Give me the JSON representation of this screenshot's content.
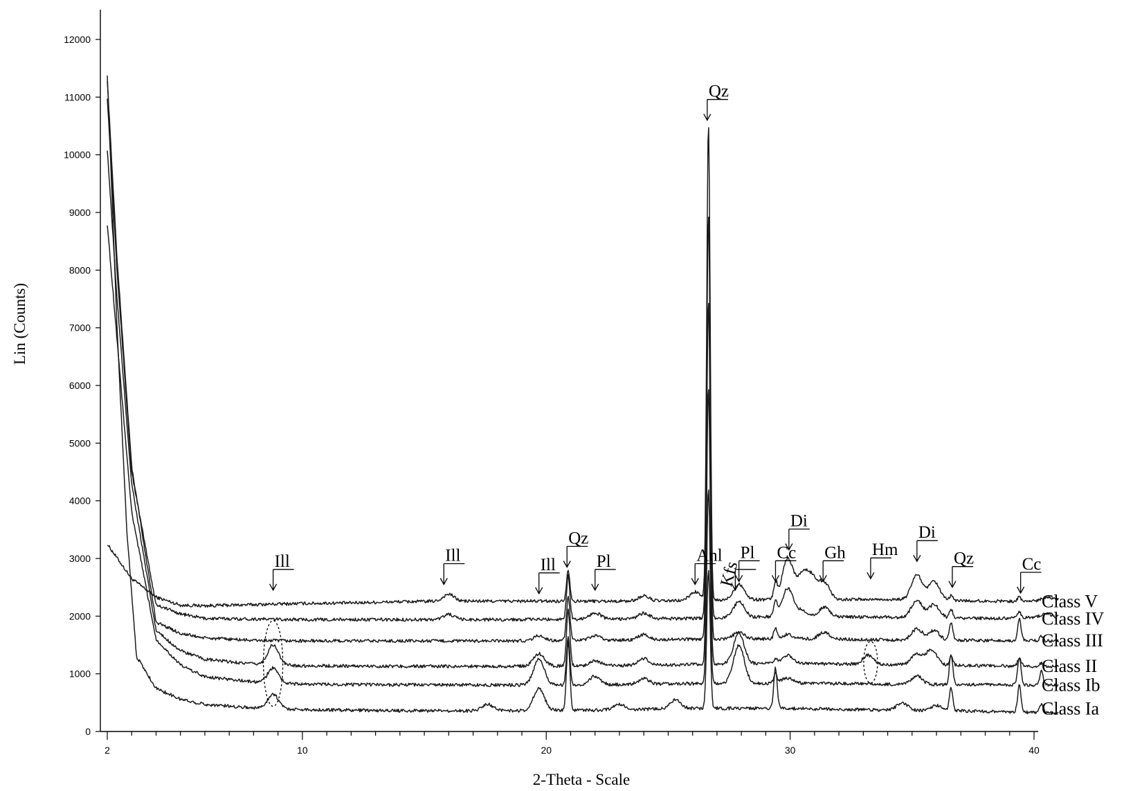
{
  "chart_data": {
    "type": "line",
    "title": "",
    "xlabel": "2-Theta - Scale",
    "ylabel": "Lin (Counts)",
    "xlim": [
      2,
      41
    ],
    "ylim": [
      0,
      12000
    ],
    "grid": false,
    "x_ticks": [
      2,
      10,
      20,
      30,
      40
    ],
    "x_minor_ticks": [
      3,
      4,
      5,
      6,
      7,
      8,
      9,
      11,
      12,
      13,
      14,
      15,
      16,
      17,
      18,
      19,
      21,
      22,
      23,
      24,
      25,
      26,
      27,
      28,
      29,
      31,
      32,
      33,
      34,
      35,
      36,
      37,
      38,
      39,
      41
    ],
    "y_ticks": [
      0,
      1000,
      2000,
      3000,
      4000,
      5000,
      6000,
      7000,
      8000,
      9000,
      10000,
      11000,
      12000
    ],
    "series": [
      {
        "name": "Class V",
        "baseline": 2250,
        "low_angle_intensity": 3250,
        "points": [
          [
            2,
            3250
          ],
          [
            3,
            2650
          ],
          [
            4,
            2330
          ],
          [
            5,
            2190
          ],
          [
            6,
            2180
          ],
          [
            8,
            2200
          ],
          [
            10,
            2220
          ],
          [
            12,
            2230
          ],
          [
            14,
            2250
          ],
          [
            16,
            2260
          ],
          [
            18,
            2260
          ],
          [
            20,
            2260
          ],
          [
            22,
            2260
          ],
          [
            24,
            2260
          ],
          [
            26,
            2270
          ],
          [
            28,
            2280
          ],
          [
            30,
            2300
          ],
          [
            32,
            2290
          ],
          [
            34,
            2290
          ],
          [
            36,
            2280
          ],
          [
            38,
            2260
          ],
          [
            40,
            2260
          ],
          [
            41,
            2300
          ]
        ],
        "peaks": [
          [
            16.0,
            2380
          ],
          [
            20.9,
            2800
          ],
          [
            24.0,
            2350
          ],
          [
            26.1,
            2420
          ],
          [
            26.65,
            10550
          ],
          [
            27.9,
            2560
          ],
          [
            29.4,
            2560
          ],
          [
            29.9,
            3000
          ],
          [
            30.5,
            2700
          ],
          [
            30.9,
            2640
          ],
          [
            31.4,
            2580
          ],
          [
            35.2,
            2720
          ],
          [
            35.9,
            2600
          ],
          [
            36.6,
            2350
          ],
          [
            39.4,
            2330
          ],
          [
            40.5,
            2330
          ]
        ]
      },
      {
        "name": "Class IV",
        "baseline": 1950,
        "low_angle_intensity": 11000,
        "points": [
          [
            2,
            11000
          ],
          [
            2.4,
            8000
          ],
          [
            3,
            4500
          ],
          [
            4,
            2200
          ],
          [
            5,
            2040
          ],
          [
            6,
            1960
          ],
          [
            8,
            1950
          ],
          [
            10,
            1940
          ],
          [
            14,
            1940
          ],
          [
            18,
            1940
          ],
          [
            22,
            1950
          ],
          [
            26,
            1960
          ],
          [
            30,
            2000
          ],
          [
            34,
            1980
          ],
          [
            38,
            1960
          ],
          [
            41,
            1980
          ]
        ],
        "peaks": [
          [
            16.0,
            2030
          ],
          [
            20.9,
            2700
          ],
          [
            22.0,
            2060
          ],
          [
            24.0,
            2050
          ],
          [
            26.65,
            9000
          ],
          [
            27.9,
            2250
          ],
          [
            29.4,
            2250
          ],
          [
            29.9,
            2480
          ],
          [
            30.5,
            2100
          ],
          [
            31.4,
            2150
          ],
          [
            35.2,
            2280
          ],
          [
            35.9,
            2200
          ],
          [
            36.6,
            2120
          ],
          [
            39.4,
            2080
          ],
          [
            40.5,
            2040
          ]
        ]
      },
      {
        "name": "Class III",
        "baseline": 1570,
        "low_angle_intensity": 11300,
        "points": [
          [
            2,
            11300
          ],
          [
            2.4,
            8200
          ],
          [
            3,
            4600
          ],
          [
            4,
            1900
          ],
          [
            5,
            1700
          ],
          [
            6,
            1620
          ],
          [
            8,
            1580
          ],
          [
            10,
            1570
          ],
          [
            14,
            1570
          ],
          [
            18,
            1570
          ],
          [
            22,
            1580
          ],
          [
            26,
            1600
          ],
          [
            30,
            1610
          ],
          [
            34,
            1590
          ],
          [
            38,
            1580
          ],
          [
            41,
            1570
          ]
        ],
        "peaks": [
          [
            19.7,
            1660
          ],
          [
            20.9,
            2350
          ],
          [
            22.0,
            1660
          ],
          [
            24.0,
            1680
          ],
          [
            26.65,
            7500
          ],
          [
            27.9,
            1720
          ],
          [
            29.4,
            1780
          ],
          [
            29.9,
            1680
          ],
          [
            31.4,
            1720
          ],
          [
            35.2,
            1780
          ],
          [
            35.9,
            1750
          ],
          [
            36.6,
            1900
          ],
          [
            39.4,
            1950
          ],
          [
            40.3,
            1660
          ]
        ]
      },
      {
        "name": "Class II",
        "baseline": 1130,
        "low_angle_intensity": 10100,
        "points": [
          [
            2,
            10100
          ],
          [
            2.4,
            7500
          ],
          [
            3,
            4300
          ],
          [
            4,
            1750
          ],
          [
            5,
            1400
          ],
          [
            6,
            1250
          ],
          [
            8,
            1170
          ],
          [
            10,
            1140
          ],
          [
            14,
            1130
          ],
          [
            18,
            1130
          ],
          [
            22,
            1140
          ],
          [
            26,
            1160
          ],
          [
            30,
            1180
          ],
          [
            34,
            1160
          ],
          [
            38,
            1140
          ],
          [
            41,
            1130
          ]
        ],
        "peaks": [
          [
            8.8,
            1500
          ],
          [
            19.7,
            1350
          ],
          [
            20.9,
            2100
          ],
          [
            22.0,
            1230
          ],
          [
            24.0,
            1260
          ],
          [
            26.65,
            6000
          ],
          [
            27.9,
            1700
          ],
          [
            29.4,
            1250
          ],
          [
            29.9,
            1320
          ],
          [
            33.2,
            1320
          ],
          [
            35.2,
            1350
          ],
          [
            35.8,
            1420
          ],
          [
            36.6,
            1300
          ],
          [
            39.4,
            1280
          ],
          [
            40.3,
            1180
          ]
        ]
      },
      {
        "name": "Class Ib",
        "baseline": 800,
        "low_angle_intensity": 8800,
        "points": [
          [
            2,
            8800
          ],
          [
            2.4,
            6800
          ],
          [
            3,
            3800
          ],
          [
            4,
            1600
          ],
          [
            5,
            1150
          ],
          [
            6,
            950
          ],
          [
            8,
            860
          ],
          [
            10,
            820
          ],
          [
            14,
            810
          ],
          [
            18,
            805
          ],
          [
            22,
            810
          ],
          [
            26,
            830
          ],
          [
            30,
            840
          ],
          [
            34,
            820
          ],
          [
            38,
            810
          ],
          [
            41,
            800
          ]
        ],
        "peaks": [
          [
            8.8,
            1100
          ],
          [
            19.7,
            1250
          ],
          [
            20.9,
            1650
          ],
          [
            22.0,
            960
          ],
          [
            24.0,
            920
          ],
          [
            26.65,
            4200
          ],
          [
            27.9,
            1500
          ],
          [
            29.4,
            1000
          ],
          [
            29.9,
            930
          ],
          [
            35.2,
            960
          ],
          [
            36.6,
            1350
          ],
          [
            39.4,
            1300
          ],
          [
            40.3,
            1050
          ]
        ]
      },
      {
        "name": "Class Ia",
        "baseline": 390,
        "low_angle_intensity": 11400,
        "points": [
          [
            2,
            11400
          ],
          [
            2.4,
            7000
          ],
          [
            2.8,
            3500
          ],
          [
            3.2,
            1300
          ],
          [
            4,
            750
          ],
          [
            5,
            560
          ],
          [
            6,
            470
          ],
          [
            8,
            410
          ],
          [
            10,
            380
          ],
          [
            14,
            360
          ],
          [
            18,
            360
          ],
          [
            22,
            370
          ],
          [
            26,
            400
          ],
          [
            30,
            400
          ],
          [
            34,
            370
          ],
          [
            38,
            350
          ],
          [
            41,
            320
          ]
        ],
        "peaks": [
          [
            8.8,
            650
          ],
          [
            17.6,
            470
          ],
          [
            19.7,
            750
          ],
          [
            20.9,
            1550
          ],
          [
            23.0,
            470
          ],
          [
            25.3,
            550
          ],
          [
            26.65,
            2800
          ],
          [
            29.4,
            1100
          ],
          [
            34.6,
            500
          ],
          [
            36.0,
            450
          ],
          [
            36.6,
            750
          ],
          [
            39.4,
            800
          ],
          [
            40.3,
            480
          ]
        ]
      }
    ],
    "annotations": [
      {
        "label": "Ill",
        "x": 8.8,
        "y": 2450
      },
      {
        "label": "Ill",
        "x": 15.8,
        "y": 2550
      },
      {
        "label": "Ill",
        "x": 19.7,
        "y": 2390
      },
      {
        "label": "Qz",
        "x": 20.85,
        "y": 2850
      },
      {
        "label": "Pl",
        "x": 22.0,
        "y": 2450
      },
      {
        "label": "Anl",
        "x": 26.1,
        "y": 2550
      },
      {
        "label": "Qz",
        "x": 26.6,
        "y": 10600
      },
      {
        "label": "Kfs",
        "x": 27.75,
        "y": 2450
      },
      {
        "label": "Pl",
        "x": 27.9,
        "y": 2600
      },
      {
        "label": "Cc",
        "x": 29.4,
        "y": 2600
      },
      {
        "label": "Di",
        "x": 29.95,
        "y": 3150
      },
      {
        "label": "Gh",
        "x": 31.35,
        "y": 2600
      },
      {
        "label": "Hm",
        "x": 33.3,
        "y": 2650
      },
      {
        "label": "Di",
        "x": 35.2,
        "y": 2950
      },
      {
        "label": "Qz",
        "x": 36.65,
        "y": 2500
      },
      {
        "label": "Cc",
        "x": 39.45,
        "y": 2400
      }
    ],
    "highlight_ellipses": [
      {
        "x": 8.8,
        "y": 1180
      },
      {
        "x": 33.3,
        "y": 1200
      }
    ]
  }
}
